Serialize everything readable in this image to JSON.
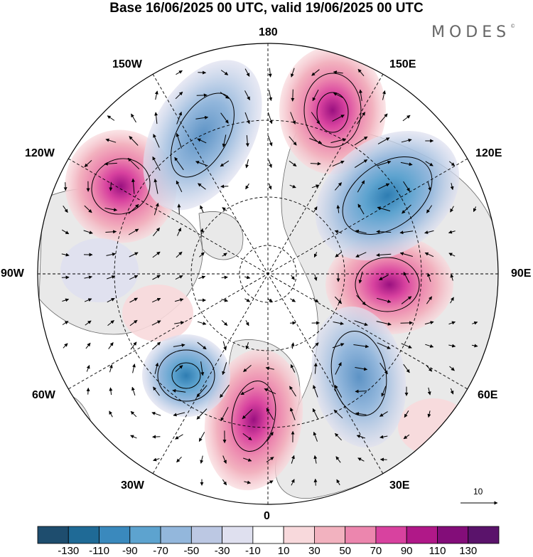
{
  "title": "Base 16/06/2025 00 UTC, valid 19/06/2025 00 UTC",
  "brand": "MODES",
  "brand_mark": "©",
  "longitude_labels": {
    "top": "180",
    "bottom": "0",
    "left": "90W",
    "right": "90E",
    "upper_left": "150W",
    "upper_left_2": "120W",
    "lower_left": "60W",
    "lower_left_2": "30W",
    "upper_right": "150E",
    "upper_right_2": "120E",
    "lower_right": "60E",
    "lower_right_2": "30E"
  },
  "reference_vector": {
    "label": "10"
  },
  "colorbar": {
    "ticks": [
      "-130",
      "-110",
      "-90",
      "-70",
      "-50",
      "-30",
      "-10",
      "10",
      "30",
      "50",
      "70",
      "90",
      "110",
      "130"
    ],
    "colors": [
      "#1e4d6e",
      "#1f6a96",
      "#3a89bd",
      "#5da3cf",
      "#93b7dc",
      "#bcc8e3",
      "#dfe0ef",
      "#ffffff",
      "#f8d9dc",
      "#f2b2bf",
      "#ec86ae",
      "#d8429f",
      "#b01888",
      "#830d79",
      "#5a136b"
    ]
  },
  "anomaly_centers": [
    {
      "sign": "positive",
      "name": "high-pressure-anomaly-150E",
      "amplitude": 95
    },
    {
      "sign": "positive",
      "name": "high-pressure-anomaly-120W",
      "amplitude": 90
    },
    {
      "sign": "positive",
      "name": "high-pressure-anomaly-90E",
      "amplitude": 105
    },
    {
      "sign": "positive",
      "name": "high-pressure-anomaly-0",
      "amplitude": 100
    },
    {
      "sign": "negative",
      "name": "low-pressure-anomaly-150W",
      "amplitude": -55
    },
    {
      "sign": "negative",
      "name": "low-pressure-anomaly-120E",
      "amplitude": -70
    },
    {
      "sign": "negative",
      "name": "low-pressure-anomaly-60W",
      "amplitude": -75
    },
    {
      "sign": "negative",
      "name": "low-pressure-anomaly-30E",
      "amplitude": -60
    }
  ]
}
